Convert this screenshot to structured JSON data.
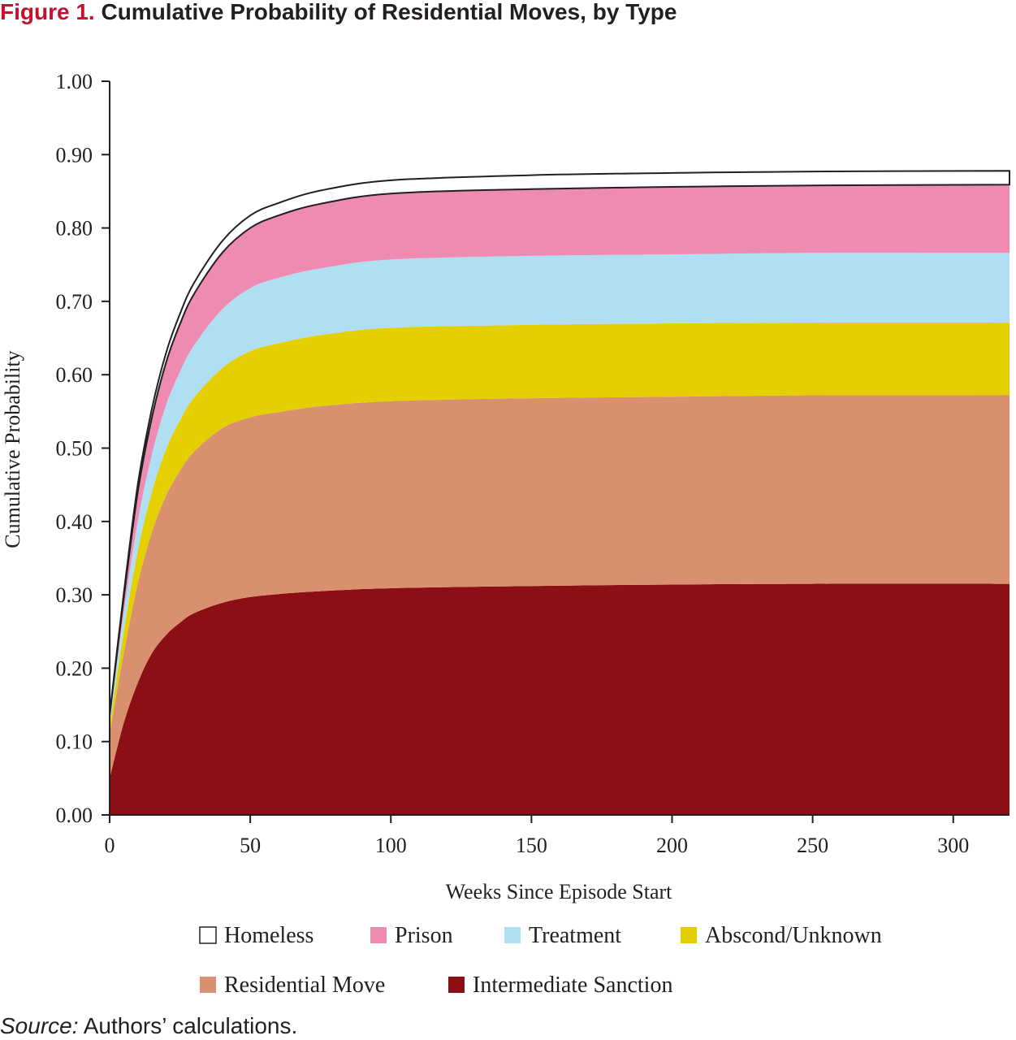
{
  "figure": {
    "number": "Figure 1.",
    "title": "Cumulative Probability of Residential Moves, by Type"
  },
  "source": {
    "label": "Source:",
    "text": " Authors’ calculations."
  },
  "chart_data": {
    "type": "area",
    "stacked": true,
    "xlabel": "Weeks Since Episode Start",
    "ylabel": "Cumulative Probability",
    "xlim": [
      0,
      320
    ],
    "ylim": [
      0,
      1
    ],
    "xticks": [
      {
        "value": 0,
        "label": "0"
      },
      {
        "value": 50,
        "label": "50"
      },
      {
        "value": 100,
        "label": "100"
      },
      {
        "value": 150,
        "label": "150"
      },
      {
        "value": 200,
        "label": "200"
      },
      {
        "value": 250,
        "label": "250"
      },
      {
        "value": 300,
        "label": "300"
      }
    ],
    "yticks": [
      {
        "value": 0.0,
        "label": "0.00"
      },
      {
        "value": 0.1,
        "label": "0.10"
      },
      {
        "value": 0.2,
        "label": "0.20"
      },
      {
        "value": 0.3,
        "label": "0.30"
      },
      {
        "value": 0.4,
        "label": "0.40"
      },
      {
        "value": 0.5,
        "label": "0.50"
      },
      {
        "value": 0.6,
        "label": "0.60"
      },
      {
        "value": 0.7,
        "label": "0.70"
      },
      {
        "value": 0.8,
        "label": "0.80"
      },
      {
        "value": 0.9,
        "label": "0.90"
      },
      {
        "value": 1.0,
        "label": "1.00"
      }
    ],
    "grid": false,
    "legend_position": "bottom",
    "x": [
      0,
      5,
      10,
      15,
      20,
      25,
      30,
      40,
      50,
      60,
      75,
      100,
      150,
      200,
      250,
      320
    ],
    "series_note_order": "bottom-to-top",
    "series": [
      {
        "name": "Intermediate Sanction",
        "color": "#8b0f14",
        "values": [
          0.05,
          0.125,
          0.18,
          0.22,
          0.245,
          0.262,
          0.275,
          0.289,
          0.297,
          0.301,
          0.305,
          0.309,
          0.312,
          0.314,
          0.315,
          0.315
        ]
      },
      {
        "name": "Residential Move",
        "color": "#d9906e",
        "values": [
          0.06,
          0.095,
          0.135,
          0.165,
          0.19,
          0.207,
          0.22,
          0.238,
          0.245,
          0.248,
          0.252,
          0.255,
          0.256,
          0.256,
          0.257,
          0.257
        ]
      },
      {
        "name": "Abscond/Unknown",
        "color": "#e4cf00",
        "values": [
          0.01,
          0.03,
          0.045,
          0.055,
          0.063,
          0.069,
          0.074,
          0.082,
          0.09,
          0.094,
          0.097,
          0.1,
          0.1,
          0.1,
          0.099,
          0.099
        ]
      },
      {
        "name": "Treatment",
        "color": "#b0dff4",
        "values": [
          0.01,
          0.025,
          0.04,
          0.051,
          0.06,
          0.066,
          0.071,
          0.08,
          0.086,
          0.089,
          0.091,
          0.093,
          0.094,
          0.094,
          0.095,
          0.095
        ]
      },
      {
        "name": "Prison",
        "color": "#ee8bb1",
        "values": [
          0.005,
          0.02,
          0.04,
          0.05,
          0.058,
          0.065,
          0.07,
          0.077,
          0.082,
          0.085,
          0.088,
          0.09,
          0.091,
          0.092,
          0.092,
          0.093
        ]
      },
      {
        "name": "Homeless",
        "color": "#ffffff",
        "values": [
          0.002,
          0.006,
          0.01,
          0.012,
          0.013,
          0.014,
          0.015,
          0.016,
          0.017,
          0.017,
          0.018,
          0.018,
          0.019,
          0.019,
          0.019,
          0.019
        ]
      }
    ],
    "legend_order": [
      "Homeless",
      "Prison",
      "Treatment",
      "Abscond/Unknown",
      "Residential Move",
      "Intermediate Sanction"
    ]
  }
}
